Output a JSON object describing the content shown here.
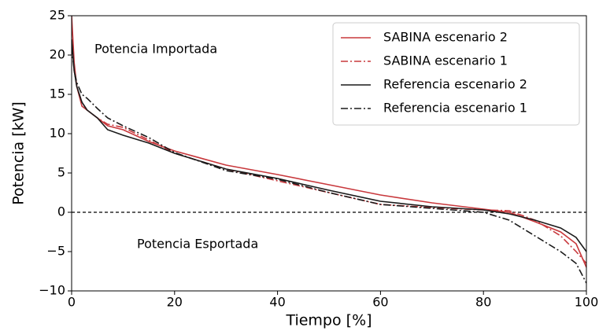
{
  "chart_data": {
    "type": "line",
    "xlabel": "Tiempo [%]",
    "ylabel": "Potencia [kW]",
    "annotations": [
      "Potencia Importada",
      "Potencia Esportada"
    ],
    "x": [
      0,
      0.5,
      1,
      2,
      3,
      5,
      7,
      10,
      15,
      20,
      30,
      40,
      50,
      60,
      70,
      80,
      85,
      90,
      95,
      98,
      100
    ],
    "series": [
      {
        "name": "SABINA escenario 2",
        "color": "#c8383c",
        "style": "solid",
        "values": [
          25,
          19,
          16,
          13.5,
          13,
          12,
          11,
          10.5,
          9,
          7.8,
          6,
          4.8,
          3.5,
          2.2,
          1.2,
          0.4,
          0,
          -1.2,
          -2.5,
          -4,
          -7
        ]
      },
      {
        "name": "SABINA escenario 1",
        "color": "#c8383c",
        "style": "dashdot",
        "values": [
          22,
          18,
          16,
          14,
          13,
          12,
          11.2,
          10.8,
          9.2,
          7.5,
          5.5,
          4,
          2.5,
          1,
          0.6,
          0.3,
          0.2,
          -1,
          -3,
          -5,
          -6.5
        ]
      },
      {
        "name": "Referencia escenario 2",
        "color": "#1a1a1a",
        "style": "solid",
        "values": [
          22,
          18,
          16,
          14,
          13,
          12,
          10.5,
          9.8,
          8.8,
          7.5,
          5.5,
          4.3,
          2.8,
          1.4,
          0.7,
          0.3,
          -0.2,
          -1,
          -2,
          -3.2,
          -5
        ]
      },
      {
        "name": "Referencia escenario 1",
        "color": "#1a1a1a",
        "style": "dashdot",
        "values": [
          21,
          18,
          16.5,
          15,
          14.5,
          13.2,
          12,
          11,
          9.5,
          7.6,
          5.3,
          4.2,
          2.5,
          1,
          0.5,
          0,
          -1,
          -3,
          -5,
          -6.5,
          -9
        ]
      }
    ],
    "hlines": [
      0
    ],
    "xlim": [
      0,
      100
    ],
    "xticks": [
      0,
      20,
      40,
      60,
      80,
      100
    ],
    "ylim": [
      -10,
      25
    ],
    "yticks": [
      {
        "value": -10,
        "label": "−10"
      },
      {
        "value": -5,
        "label": "−5"
      },
      0,
      5,
      10,
      15,
      20,
      25
    ],
    "grid": false,
    "legend": "upper right"
  }
}
